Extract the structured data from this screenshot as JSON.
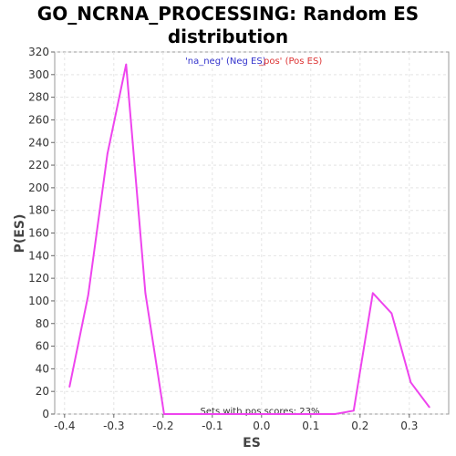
{
  "chart_data": {
    "type": "line",
    "title_line1": "GO_NCRNA_PROCESSING: Random ES",
    "title_line2": "distribution",
    "xlabel": "ES",
    "ylabel": "P(ES)",
    "xlim": [
      -0.42,
      0.38
    ],
    "ylim": [
      0,
      320
    ],
    "x_ticks": [
      "-0.4",
      "-0.3",
      "-0.2",
      "-0.1",
      "0.0",
      "0.1",
      "0.2",
      "0.3"
    ],
    "x_tick_values": [
      -0.4,
      -0.3,
      -0.2,
      -0.1,
      0.0,
      0.1,
      0.2,
      0.3
    ],
    "y_ticks": [
      "0",
      "20",
      "40",
      "60",
      "80",
      "100",
      "120",
      "140",
      "160",
      "180",
      "200",
      "220",
      "240",
      "260",
      "280",
      "300",
      "320"
    ],
    "y_tick_values": [
      0,
      20,
      40,
      60,
      80,
      100,
      120,
      140,
      160,
      180,
      200,
      220,
      240,
      260,
      280,
      300,
      320
    ],
    "grid": true,
    "legend": {
      "placement": "top-center",
      "neg_text": "'na_neg' (Neg ES)",
      "neg_color": "#3333cc",
      "pos_text": "_pos' (Pos ES)",
      "pos_color": "#dd3333"
    },
    "annotation": "Sets with pos scores: 23%",
    "line_color": "#ee44ee",
    "series": [
      {
        "x": [
          -0.39,
          -0.352,
          -0.313,
          -0.275,
          -0.236,
          -0.198,
          -0.159,
          -0.121,
          -0.082,
          -0.044,
          -0.005,
          0.033,
          0.072,
          0.11,
          0.149,
          0.187,
          0.226,
          0.264,
          0.303,
          0.341
        ],
        "y": [
          24,
          105,
          230,
          309,
          107,
          0,
          0,
          0,
          0,
          0,
          0,
          0,
          0,
          0,
          0,
          3,
          107,
          89,
          28,
          6
        ]
      }
    ]
  }
}
